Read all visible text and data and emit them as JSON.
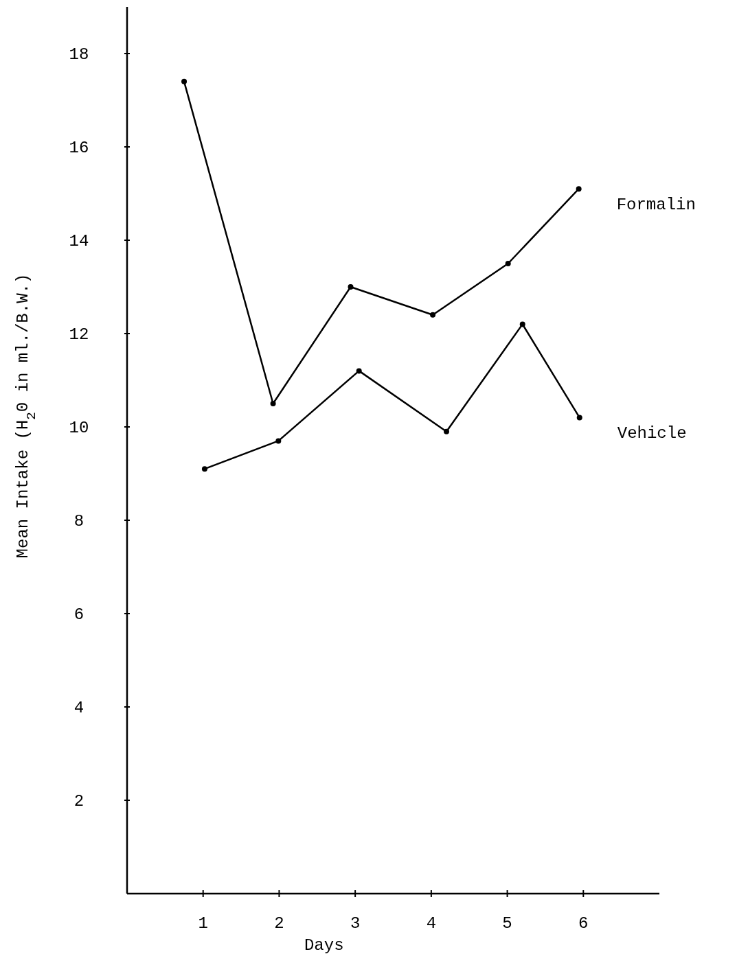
{
  "chart_data": {
    "type": "line",
    "xlabel": "Days",
    "ylabel": "Mean Intake (H$_{2}$0 in ml./B.W.)",
    "series": [
      {
        "name": "Formalin",
        "color": "#000000",
        "x": [
          0.75,
          1.92,
          2.94,
          4.02,
          5.01,
          5.94
        ],
        "values": [
          17.4,
          10.5,
          13.0,
          12.4,
          13.5,
          15.1
        ]
      },
      {
        "name": "Vehicle",
        "color": "#000000",
        "x": [
          1.02,
          1.99,
          3.05,
          4.2,
          5.2,
          5.95
        ],
        "values": [
          9.1,
          9.7,
          11.2,
          9.9,
          12.2,
          10.2
        ]
      }
    ],
    "xlim": [
      0,
      7
    ],
    "xticks": [
      1,
      2,
      3,
      4,
      5,
      6
    ],
    "ylim": [
      0,
      19
    ],
    "yticks": [
      2,
      4,
      6,
      8,
      10,
      12,
      14,
      16,
      18
    ],
    "grid": false,
    "marker": "circle",
    "line_style": "solid"
  }
}
